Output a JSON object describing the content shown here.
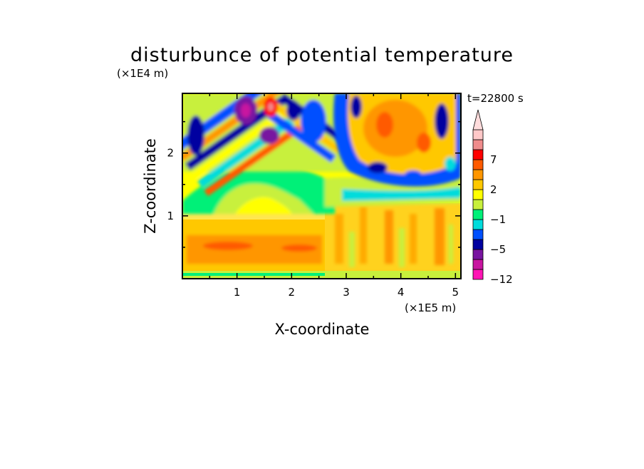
{
  "chart_data": {
    "type": "heatmap",
    "title": "disturbunce of potential temperature",
    "xlabel": "X-coordinate",
    "ylabel": "Z-coordinate",
    "x_unit": "(×1E5 m)",
    "y_unit": "(×1E4 m)",
    "time_label": "t=22800 s",
    "xlim": [
      0,
      5.1
    ],
    "ylim": [
      0,
      2.95
    ],
    "x_ticks": [
      "1",
      "2",
      "3",
      "4",
      "5"
    ],
    "y_ticks": [
      "1",
      "2"
    ],
    "colorbar": {
      "tick_labels": [
        "7",
        "2",
        "−1",
        "−5",
        "−12"
      ],
      "colors": [
        "#ff14b4",
        "#c814a0",
        "#7814a0",
        "#0000a0",
        "#0050ff",
        "#00dcdc",
        "#00f078",
        "#c8f03c",
        "#ffff00",
        "#ffc800",
        "#ff9600",
        "#ff5a00",
        "#ff0000",
        "#f08c8c",
        "#ffc8c8"
      ],
      "extend_top_color": "#ffdcdc"
    },
    "regions": [
      {
        "x": [
          0,
          5.1
        ],
        "z": [
          0,
          2.95
        ],
        "level": "weak positive (~1 to 2)"
      },
      {
        "x": [
          0,
          2.6
        ],
        "z": [
          0.3,
          0.8
        ],
        "level": "positive (~2 to 5)"
      },
      {
        "x": [
          0.9,
          1.9
        ],
        "z": [
          2.3,
          2.95
        ],
        "level": "strong negative (~-5 to -12)"
      },
      {
        "x": [
          3.3,
          4.5
        ],
        "z": [
          1.5,
          2.95
        ],
        "level": "positive (~2 to 5)"
      },
      {
        "x": [
          0,
          5.1
        ],
        "z": [
          0,
          0.1
        ],
        "level": "weak negative (~-1)"
      }
    ]
  }
}
